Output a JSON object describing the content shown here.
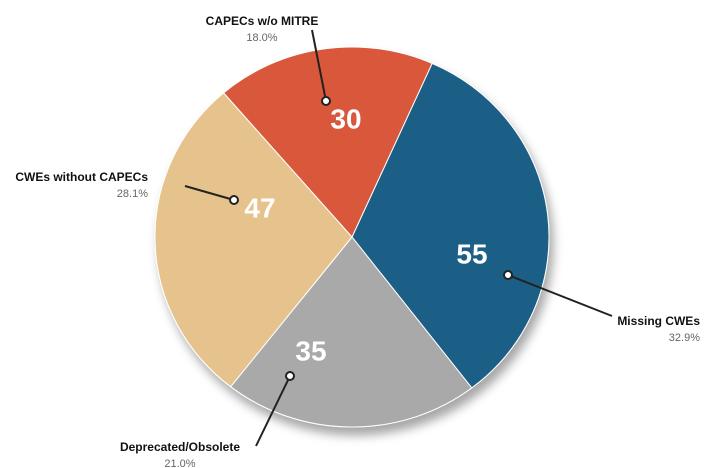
{
  "chart_data": {
    "type": "pie",
    "categories": [
      "Missing CWEs",
      "Deprecated/Obsolete",
      "CWEs without CAPECs",
      "CAPECs w/o MITRE"
    ],
    "values": [
      55,
      35,
      47,
      30
    ],
    "percent_labels": [
      "32.9%",
      "21.0%",
      "28.1%",
      "18.0%"
    ],
    "colors": [
      "#1f5f86",
      "#a9a9a9",
      "#e6c38c",
      "#d9583a"
    ]
  }
}
